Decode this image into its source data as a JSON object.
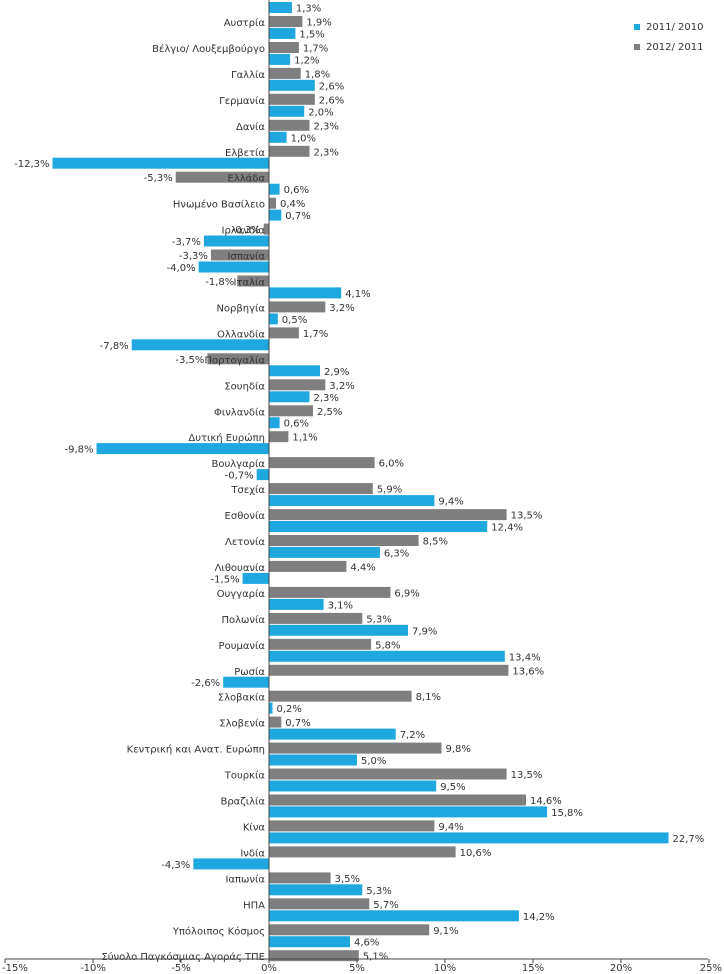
{
  "chart_data": {
    "type": "bar",
    "orientation": "horizontal",
    "xlim": [
      -15,
      25
    ],
    "xticks": [
      "-15%",
      "-10%",
      "-5%",
      "0%",
      "5%",
      "10%",
      "15%",
      "20%",
      "25%"
    ],
    "xtick_values": [
      -15,
      -10,
      -5,
      0,
      5,
      10,
      15,
      20,
      25
    ],
    "grid": false,
    "legend_position": "top-right",
    "categories": [
      "Αυστρία",
      "Βέλγιο/ Λουξεμβούργο",
      "Γαλλία",
      "Γερμανία",
      "Δανία",
      "Ελβετία",
      "Ελλάδα",
      "Ηνωμένο Βασίλειο",
      "Ιρλανδία",
      "Ισπανία",
      "Ιταλία",
      "Νορβηγία",
      "Ολλανδία",
      "Πορτογαλία",
      "Σουηδία",
      "Φινλανδία",
      "Δυτική Ευρώπη",
      "Βουλγαρία",
      "Τσεχία",
      "Εσθονία",
      "Λετονία",
      "Λιθουανία",
      "Ουγγαρία",
      "Πολωνία",
      "Ρουμανία",
      "Ρωσία",
      "Σλοβακία",
      "Σλοβενία",
      "Κεντρική και Ανατ. Ευρώπη",
      "Τουρκία",
      "Βραζιλία",
      "Κίνα",
      "Ινδία",
      "Ιαπωνία",
      "ΗΠΑ",
      "Υπόλοιπος Κόσμος",
      "Σύνολο Παγκόσμιας Αγοράς ΤΠΕ"
    ],
    "series": [
      {
        "name": "2011/ 2010",
        "color": "#1fa8e0",
        "values": [
          1.3,
          1.5,
          1.2,
          2.6,
          2.0,
          1.0,
          -12.3,
          0.6,
          0.7,
          -3.7,
          -4.0,
          4.1,
          0.5,
          -7.8,
          2.9,
          2.3,
          0.6,
          -9.8,
          -0.7,
          9.4,
          12.4,
          6.3,
          -1.5,
          3.1,
          7.9,
          13.4,
          -2.6,
          0.2,
          7.2,
          5.0,
          9.5,
          15.8,
          22.7,
          -4.3,
          5.3,
          14.2,
          4.6
        ],
        "labels": [
          "1,3%",
          "1,5%",
          "1,2%",
          "2,6%",
          "2,0%",
          "1,0%",
          "-12,3%",
          "0,6%",
          "0,7%",
          "-3,7%",
          "-4,0%",
          "4,1%",
          "0,5%",
          "-7,8%",
          "2,9%",
          "2,3%",
          "0,6%",
          "-9,8%",
          "-0,7%",
          "9,4%",
          "12,4%",
          "6,3%",
          "-1,5%",
          "3,1%",
          "7,9%",
          "13,4%",
          "-2,6%",
          "0,2%",
          "7,2%",
          "5,0%",
          "9,5%",
          "15,8%",
          "22,7%",
          "-4,3%",
          "5,3%",
          "14,2%",
          "4,6%"
        ]
      },
      {
        "name": "2012/ 2011",
        "color": "#7f7f7f",
        "values": [
          1.9,
          1.7,
          1.8,
          2.6,
          2.3,
          2.3,
          -5.3,
          0.4,
          -0.3,
          -3.3,
          -1.8,
          3.2,
          1.7,
          -3.5,
          3.2,
          2.5,
          1.1,
          6.0,
          5.9,
          13.5,
          8.5,
          4.4,
          6.9,
          5.3,
          5.8,
          13.6,
          8.1,
          0.7,
          9.8,
          13.5,
          14.6,
          9.4,
          10.6,
          3.5,
          5.7,
          9.1,
          5.1
        ],
        "labels": [
          "1,9%",
          "1,7%",
          "1,8%",
          "2,6%",
          "2,3%",
          "2,3%",
          "-5,3%",
          "0,4%",
          "-0,3%",
          "-3,3%",
          "-1,8%",
          "3,2%",
          "1,7%",
          "-3,5%",
          "3,2%",
          "2,5%",
          "1,1%",
          "6,0%",
          "5,9%",
          "13,5%",
          "8,5%",
          "4,4%",
          "6,9%",
          "5,3%",
          "5,8%",
          "13,6%",
          "8,1%",
          "0,7%",
          "9,8%",
          "13,5%",
          "14,6%",
          "9,4%",
          "10,6%",
          "3,5%",
          "5,7%",
          "9,1%",
          "5,1%"
        ]
      }
    ]
  }
}
